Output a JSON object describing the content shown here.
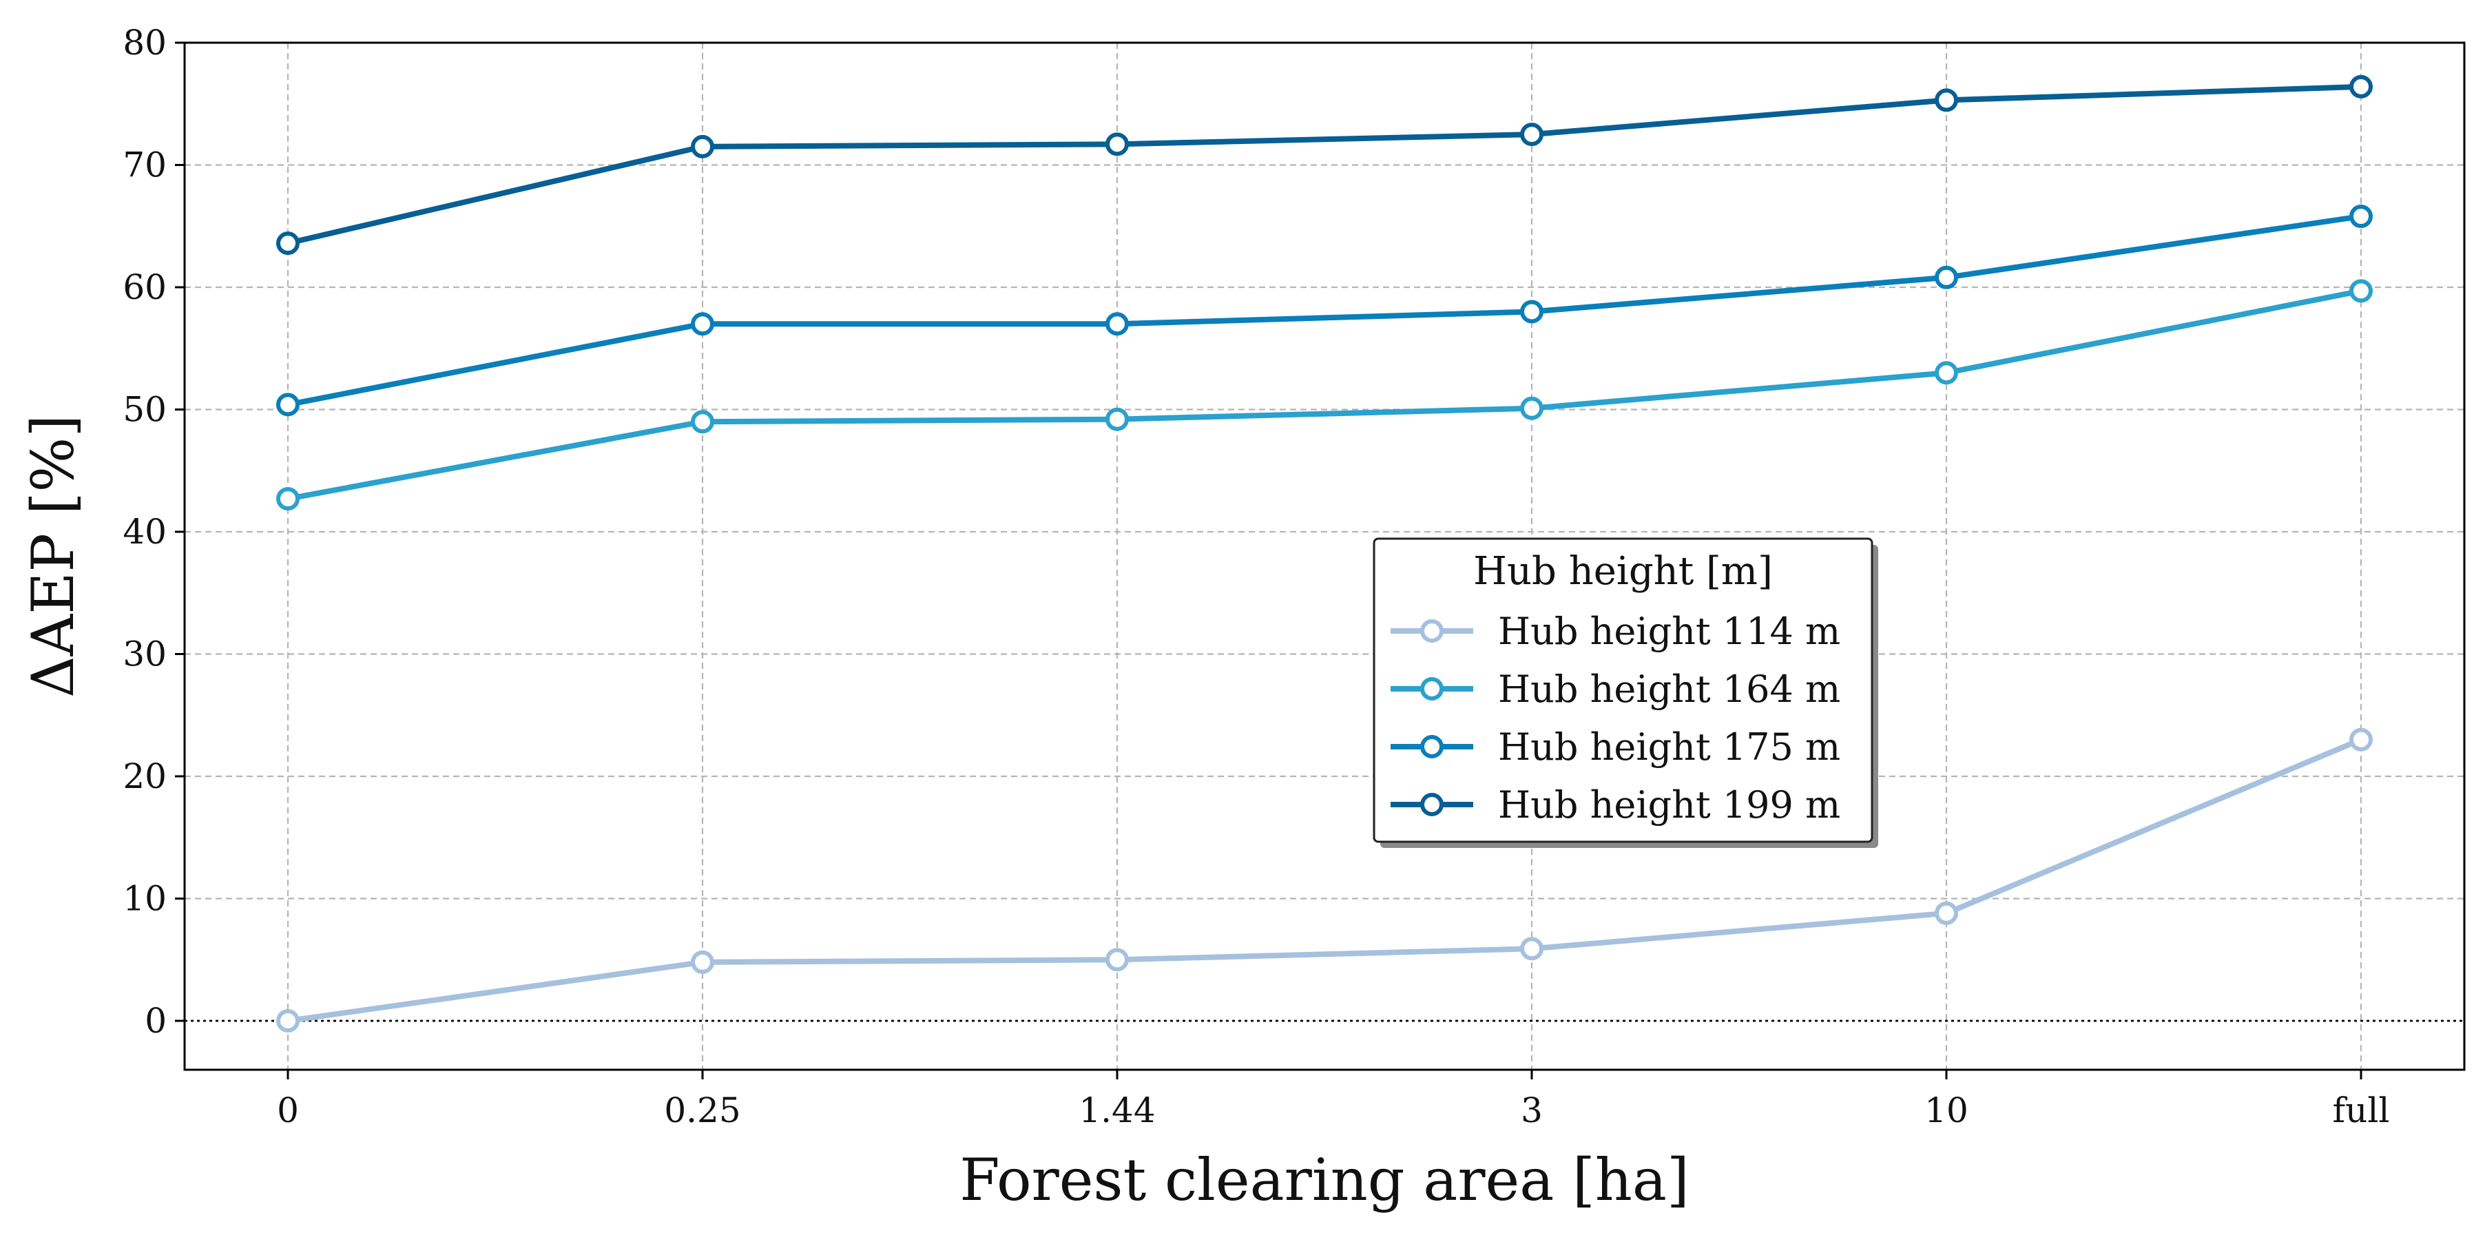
{
  "chart_data": {
    "type": "line",
    "xlabel": "Forest clearing area [ha]",
    "ylabel": "ΔAEP [%]",
    "categories": [
      "0",
      "0.25",
      "1.44",
      "3",
      "10",
      "full"
    ],
    "ylim": [
      -4,
      80
    ],
    "yticks": [
      0,
      10,
      20,
      30,
      40,
      50,
      60,
      70,
      80
    ],
    "grid": true,
    "zero_reference_line": true,
    "legend": {
      "title": "Hub height [m]",
      "placement": "center-right"
    },
    "series": [
      {
        "name": "Hub height 114 m",
        "color": "#a6c0df",
        "values": [
          0.0,
          4.8,
          5.0,
          5.9,
          8.8,
          23.0
        ]
      },
      {
        "name": "Hub height 164 m",
        "color": "#2aa1ce",
        "values": [
          42.7,
          49.0,
          49.2,
          50.1,
          53.0,
          59.7
        ]
      },
      {
        "name": "Hub height 175 m",
        "color": "#0a7fba",
        "values": [
          50.4,
          57.0,
          57.0,
          58.0,
          60.8,
          65.8
        ]
      },
      {
        "name": "Hub height 199 m",
        "color": "#075f94",
        "values": [
          63.6,
          71.5,
          71.7,
          72.5,
          75.3,
          76.4
        ]
      }
    ]
  }
}
